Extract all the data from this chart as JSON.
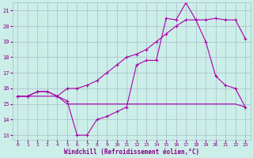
{
  "xlabel": "Windchill (Refroidissement éolien,°C)",
  "background_color": "#cceee8",
  "grid_color": "#aabbcc",
  "line_color": "#aa00aa",
  "xlim": [
    -0.5,
    23.5
  ],
  "ylim": [
    12.7,
    21.5
  ],
  "yticks": [
    13,
    14,
    15,
    16,
    17,
    18,
    19,
    20,
    21
  ],
  "xticks": [
    0,
    1,
    2,
    3,
    4,
    5,
    6,
    7,
    8,
    9,
    10,
    11,
    12,
    13,
    14,
    15,
    16,
    17,
    18,
    19,
    20,
    21,
    22,
    23
  ],
  "line1_x": [
    0,
    1,
    2,
    3,
    4,
    5,
    6,
    7,
    8,
    9,
    10,
    11,
    12,
    13,
    14,
    15,
    16,
    17,
    18,
    19,
    20,
    21,
    22,
    23
  ],
  "line1_y": [
    15.5,
    15.5,
    15.5,
    15.5,
    15.5,
    15.0,
    15.0,
    15.0,
    15.0,
    15.0,
    15.0,
    15.0,
    15.0,
    15.0,
    15.0,
    15.0,
    15.0,
    15.0,
    15.0,
    15.0,
    15.0,
    15.0,
    15.0,
    14.8
  ],
  "line2_x": [
    0,
    1,
    2,
    3,
    4,
    5,
    6,
    7,
    8,
    9,
    10,
    11,
    12,
    13,
    14,
    15,
    16,
    17,
    18,
    19,
    20,
    21,
    22,
    23
  ],
  "line2_y": [
    15.5,
    15.5,
    15.8,
    15.8,
    15.5,
    15.2,
    13.0,
    13.0,
    14.0,
    14.2,
    14.5,
    14.8,
    17.5,
    17.8,
    17.8,
    20.5,
    20.4,
    21.5,
    20.4,
    19.0,
    16.8,
    16.2,
    16.0,
    14.8
  ],
  "line3_x": [
    0,
    1,
    2,
    3,
    4,
    5,
    6,
    7,
    8,
    9,
    10,
    11,
    12,
    13,
    14,
    15,
    16,
    17,
    18,
    19,
    20,
    21,
    22,
    23
  ],
  "line3_y": [
    15.5,
    15.5,
    15.8,
    15.8,
    15.5,
    16.0,
    16.0,
    16.2,
    16.5,
    17.0,
    17.5,
    18.0,
    18.2,
    18.5,
    19.0,
    19.5,
    20.0,
    20.4,
    20.4,
    20.4,
    20.5,
    20.4,
    20.4,
    19.2
  ]
}
